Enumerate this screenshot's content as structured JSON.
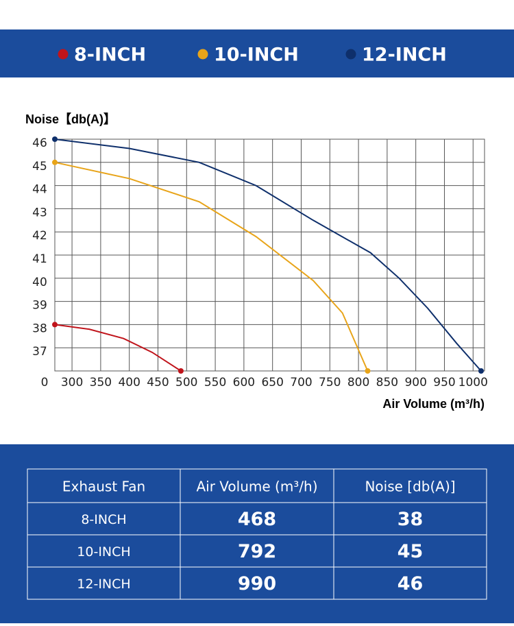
{
  "chart_data": {
    "type": "line",
    "y_label": "Noise【db(A)】",
    "x_label": "Air Volume (m³/h)",
    "origin_label": "0",
    "xlim": [
      270,
      1020
    ],
    "xticks": [
      300,
      350,
      400,
      450,
      500,
      550,
      600,
      650,
      700,
      750,
      800,
      850,
      900,
      950,
      1000
    ],
    "ylim": [
      36,
      46
    ],
    "yticks": [
      37,
      38,
      39,
      40,
      41,
      42,
      43,
      44,
      45,
      46
    ],
    "grid": true,
    "series": [
      {
        "name": "8-INCH",
        "color": "#c0141b",
        "x": [
          270,
          330,
          390,
          440,
          490
        ],
        "values": [
          38,
          37.8,
          37.4,
          36.8,
          36
        ]
      },
      {
        "name": "10-INCH",
        "color": "#e8a419",
        "x": [
          270,
          400,
          522,
          621,
          721,
          772,
          816
        ],
        "values": [
          45,
          44.3,
          43.3,
          41.8,
          39.9,
          38.5,
          36
        ]
      },
      {
        "name": "12-INCH",
        "color": "#0e2f6b",
        "x": [
          270,
          400,
          522,
          621,
          721,
          821,
          871,
          921,
          971,
          1014
        ],
        "values": [
          46,
          45.6,
          45,
          44,
          42.5,
          41.1,
          40,
          38.7,
          37.2,
          36
        ]
      }
    ]
  },
  "table": {
    "header": [
      "Exhaust Fan",
      "Air Volume (m³/h)",
      "Noise [db(A)]"
    ],
    "rows": [
      [
        "8-INCH",
        468,
        38
      ],
      [
        "10-INCH",
        792,
        45
      ],
      [
        "12-INCH",
        990,
        46
      ]
    ]
  }
}
